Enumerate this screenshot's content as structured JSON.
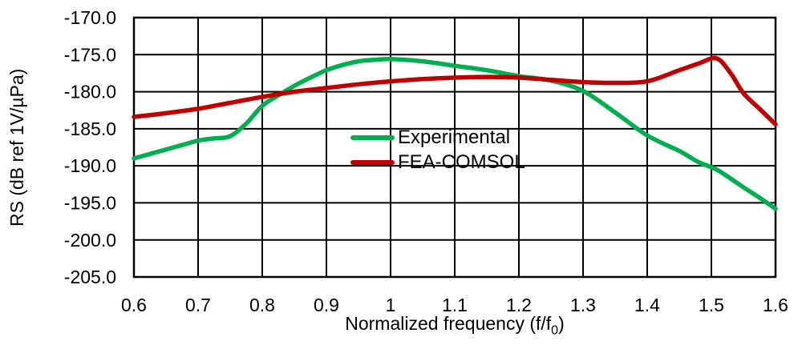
{
  "figure": {
    "background": "#ffffff",
    "grid_color": "#000000",
    "frame_color": "#000000"
  },
  "chart_data": {
    "type": "line",
    "title": "",
    "xlabel_parts": {
      "prefix": "Normalized frequency (f/f",
      "sub": "0",
      "suffix": ")"
    },
    "ylabel": "RS (dB ref 1V/µPa)",
    "xlim": [
      0.6,
      1.6
    ],
    "ylim": [
      -205,
      -170
    ],
    "grid": true,
    "legend_position": "inside-center-left",
    "xticks": [
      {
        "v": 0.6,
        "label": "0.6"
      },
      {
        "v": 0.7,
        "label": "0.7"
      },
      {
        "v": 0.8,
        "label": "0.8"
      },
      {
        "v": 0.9,
        "label": "0.9"
      },
      {
        "v": 1.0,
        "label": "1"
      },
      {
        "v": 1.1,
        "label": "1.1"
      },
      {
        "v": 1.2,
        "label": "1.2"
      },
      {
        "v": 1.3,
        "label": "1.3"
      },
      {
        "v": 1.4,
        "label": "1.4"
      },
      {
        "v": 1.5,
        "label": "1.5"
      },
      {
        "v": 1.6,
        "label": "1.6"
      }
    ],
    "yticks": [
      {
        "v": -170,
        "label": "-170.0"
      },
      {
        "v": -175,
        "label": "-175.0"
      },
      {
        "v": -180,
        "label": "-180.0"
      },
      {
        "v": -185,
        "label": "-185.0"
      },
      {
        "v": -190,
        "label": "-190.0"
      },
      {
        "v": -195,
        "label": "-195.0"
      },
      {
        "v": -200,
        "label": "-200.0"
      },
      {
        "v": -205,
        "label": "-205.0"
      }
    ],
    "series": [
      {
        "name": "Experimental",
        "color": "#00AF50",
        "width": 5.5,
        "points": [
          [
            0.6,
            -189.0
          ],
          [
            0.625,
            -188.4
          ],
          [
            0.65,
            -187.8
          ],
          [
            0.675,
            -187.2
          ],
          [
            0.7,
            -186.6
          ],
          [
            0.725,
            -186.3
          ],
          [
            0.75,
            -186.0
          ],
          [
            0.775,
            -184.3
          ],
          [
            0.8,
            -181.9
          ],
          [
            0.825,
            -180.5
          ],
          [
            0.85,
            -179.2
          ],
          [
            0.875,
            -178.1
          ],
          [
            0.9,
            -177.1
          ],
          [
            0.925,
            -176.4
          ],
          [
            0.95,
            -175.9
          ],
          [
            0.975,
            -175.7
          ],
          [
            1.0,
            -175.6
          ],
          [
            1.05,
            -175.9
          ],
          [
            1.1,
            -176.5
          ],
          [
            1.15,
            -177.1
          ],
          [
            1.2,
            -177.9
          ],
          [
            1.25,
            -178.5
          ],
          [
            1.3,
            -179.9
          ],
          [
            1.35,
            -182.8
          ],
          [
            1.4,
            -185.9
          ],
          [
            1.45,
            -188.0
          ],
          [
            1.48,
            -189.5
          ],
          [
            1.51,
            -190.6
          ],
          [
            1.55,
            -192.9
          ],
          [
            1.575,
            -194.3
          ],
          [
            1.6,
            -195.8
          ]
        ]
      },
      {
        "name": "FEA-COMSOL",
        "color": "#C00000",
        "width": 5.5,
        "points": [
          [
            0.6,
            -183.4
          ],
          [
            0.65,
            -182.9
          ],
          [
            0.7,
            -182.3
          ],
          [
            0.75,
            -181.5
          ],
          [
            0.8,
            -180.7
          ],
          [
            0.85,
            -180.0
          ],
          [
            0.9,
            -179.5
          ],
          [
            0.95,
            -179.0
          ],
          [
            1.0,
            -178.6
          ],
          [
            1.05,
            -178.3
          ],
          [
            1.1,
            -178.1
          ],
          [
            1.15,
            -178.0
          ],
          [
            1.2,
            -178.1
          ],
          [
            1.25,
            -178.4
          ],
          [
            1.3,
            -178.7
          ],
          [
            1.35,
            -178.8
          ],
          [
            1.4,
            -178.6
          ],
          [
            1.45,
            -177.1
          ],
          [
            1.48,
            -176.2
          ],
          [
            1.508,
            -175.5
          ],
          [
            1.53,
            -177.5
          ],
          [
            1.55,
            -180.2
          ],
          [
            1.575,
            -182.3
          ],
          [
            1.6,
            -184.4
          ]
        ]
      }
    ]
  }
}
